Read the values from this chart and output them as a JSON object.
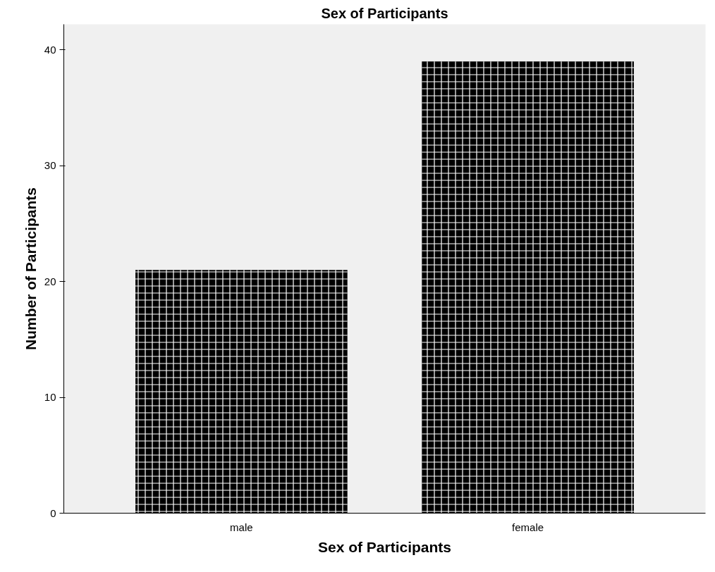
{
  "chart_data": {
    "type": "bar",
    "title": "Sex of Participants",
    "xlabel": "Sex of Participants",
    "ylabel": "Number of Participants",
    "categories": [
      "male",
      "female"
    ],
    "values": [
      21,
      39
    ],
    "color": "#000000",
    "ylim": [
      0,
      42.2
    ],
    "yticks": [
      0,
      10,
      20,
      30,
      40
    ],
    "grid": false
  }
}
